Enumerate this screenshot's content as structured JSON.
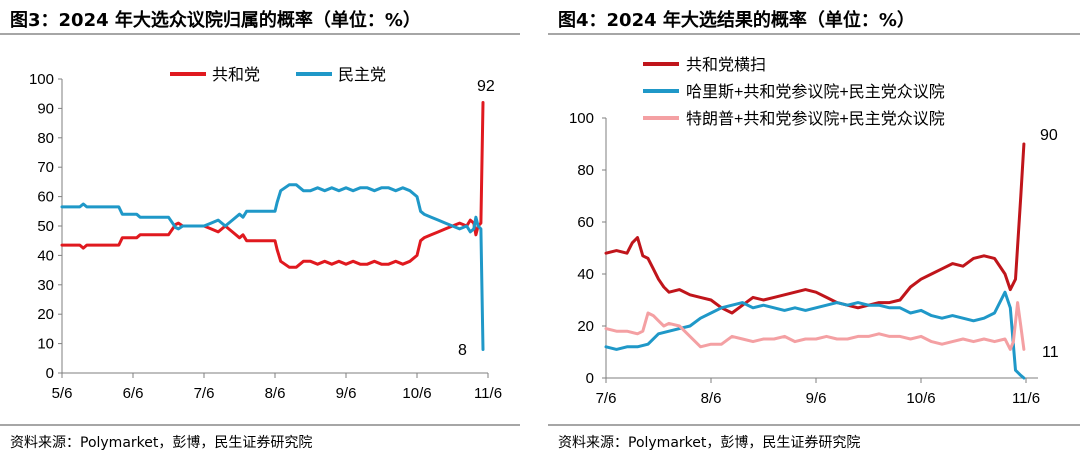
{
  "charts": [
    {
      "title": "图3：2024 年大选众议院归属的概率（单位：%）",
      "source": "资料来源：Polymarket，彭博，民生证券研究院"
    },
    {
      "title": "图4：2024 年大选结果的概率（单位：%）",
      "source": "资料来源：Polymarket，彭博，民生证券研究院"
    }
  ],
  "chart_data": [
    {
      "type": "line",
      "title": "图3：2024 年大选众议院归属的概率（单位：%）",
      "xlabel": "",
      "ylabel": "",
      "x_ticks": [
        "5/6",
        "6/6",
        "7/6",
        "8/6",
        "9/6",
        "10/6",
        "11/6"
      ],
      "y_ticks": [
        "0",
        "10",
        "20",
        "30",
        "40",
        "50",
        "60",
        "70",
        "80",
        "90",
        "100"
      ],
      "ylim": [
        0,
        100
      ],
      "grid": false,
      "legend_position": "top-center",
      "series": [
        {
          "name": "共和党",
          "color": "#e0191f",
          "x": [
            0.0,
            0.25,
            0.3,
            0.35,
            0.42,
            0.55,
            0.8,
            0.85,
            0.95,
            1.05,
            1.1,
            1.2,
            1.3,
            1.5,
            1.6,
            1.64,
            1.7,
            1.8,
            2.0,
            2.1,
            2.2,
            2.3,
            2.4,
            2.5,
            2.55,
            2.6,
            2.7,
            2.8,
            2.9,
            3.0,
            3.03,
            3.08,
            3.2,
            3.3,
            3.4,
            3.5,
            3.6,
            3.7,
            3.8,
            3.9,
            4.0,
            4.1,
            4.2,
            4.3,
            4.4,
            4.5,
            4.6,
            4.7,
            4.8,
            4.9,
            5.0,
            5.05,
            5.1,
            5.2,
            5.3,
            5.4,
            5.5,
            5.6,
            5.7,
            5.75,
            5.8,
            5.83,
            5.86,
            5.9,
            5.93
          ],
          "y": [
            43.5,
            43.5,
            42.5,
            43.5,
            43.5,
            43.5,
            43.5,
            46,
            46,
            46,
            47,
            47,
            47,
            47,
            50.5,
            51,
            50,
            50,
            50,
            49,
            48,
            50,
            48,
            46,
            47,
            45,
            45,
            45,
            45,
            45,
            42,
            38,
            36,
            36,
            38,
            38,
            37,
            38,
            37,
            38,
            37,
            38,
            37,
            37,
            38,
            37,
            37,
            38,
            37,
            38,
            40,
            45,
            46,
            47,
            48,
            49,
            50,
            51,
            50,
            52,
            51,
            47,
            50,
            51,
            92
          ]
        },
        {
          "name": "民主党",
          "color": "#1f98c8",
          "x": [
            0.0,
            0.25,
            0.3,
            0.35,
            0.42,
            0.55,
            0.8,
            0.85,
            0.95,
            1.05,
            1.1,
            1.2,
            1.3,
            1.5,
            1.6,
            1.64,
            1.7,
            1.8,
            2.0,
            2.1,
            2.2,
            2.3,
            2.4,
            2.5,
            2.55,
            2.6,
            2.7,
            2.8,
            2.9,
            3.0,
            3.03,
            3.08,
            3.2,
            3.3,
            3.4,
            3.5,
            3.6,
            3.7,
            3.8,
            3.9,
            4.0,
            4.1,
            4.2,
            4.3,
            4.4,
            4.5,
            4.6,
            4.7,
            4.8,
            4.9,
            5.0,
            5.05,
            5.1,
            5.2,
            5.3,
            5.4,
            5.5,
            5.6,
            5.7,
            5.75,
            5.8,
            5.83,
            5.86,
            5.9,
            5.93
          ],
          "y": [
            56.5,
            56.5,
            57.5,
            56.5,
            56.5,
            56.5,
            56.5,
            54,
            54,
            54,
            53,
            53,
            53,
            53,
            49.5,
            49,
            50,
            50,
            50,
            51,
            52,
            50,
            52,
            54,
            53,
            55,
            55,
            55,
            55,
            55,
            58,
            62,
            64,
            64,
            62,
            62,
            63,
            62,
            63,
            62,
            63,
            62,
            63,
            63,
            62,
            63,
            63,
            62,
            63,
            62,
            60,
            55,
            54,
            53,
            52,
            51,
            50,
            49,
            50,
            48,
            49,
            53,
            50,
            49,
            8
          ]
        }
      ],
      "data_labels": [
        "92",
        "8"
      ]
    },
    {
      "type": "line",
      "title": "图4：2024 年大选结果的概率（单位：%）",
      "xlabel": "",
      "ylabel": "",
      "x_ticks": [
        "7/6",
        "8/6",
        "9/6",
        "10/6",
        "11/6"
      ],
      "y_ticks": [
        "0",
        "20",
        "40",
        "60",
        "80",
        "100"
      ],
      "ylim": [
        0,
        100
      ],
      "grid": false,
      "legend_position": "top-left",
      "series": [
        {
          "name": "共和党横扫",
          "color": "#c0151b",
          "x": [
            0.0,
            0.1,
            0.2,
            0.25,
            0.3,
            0.35,
            0.4,
            0.45,
            0.5,
            0.55,
            0.6,
            0.7,
            0.8,
            0.9,
            1.0,
            1.1,
            1.2,
            1.3,
            1.4,
            1.5,
            1.6,
            1.7,
            1.8,
            1.9,
            2.0,
            2.1,
            2.2,
            2.3,
            2.4,
            2.5,
            2.6,
            2.7,
            2.8,
            2.9,
            3.0,
            3.1,
            3.2,
            3.3,
            3.4,
            3.5,
            3.6,
            3.7,
            3.8,
            3.85,
            3.9,
            3.95,
            3.98
          ],
          "y": [
            48,
            49,
            48,
            52,
            54,
            47,
            46,
            42,
            38,
            35,
            33,
            34,
            32,
            31,
            30,
            27,
            25,
            28,
            31,
            30,
            31,
            32,
            33,
            34,
            33,
            31,
            29,
            28,
            27,
            28,
            29,
            29,
            30,
            35,
            38,
            40,
            42,
            44,
            43,
            46,
            47,
            46,
            40,
            34,
            38,
            70,
            90
          ]
        },
        {
          "name": "哈里斯+共和党参议院+民主党众议院",
          "color": "#1f98c8",
          "x": [
            0.0,
            0.1,
            0.2,
            0.3,
            0.4,
            0.5,
            0.6,
            0.7,
            0.8,
            0.9,
            1.0,
            1.1,
            1.2,
            1.3,
            1.4,
            1.5,
            1.6,
            1.7,
            1.8,
            1.9,
            2.0,
            2.1,
            2.2,
            2.3,
            2.4,
            2.5,
            2.6,
            2.7,
            2.8,
            2.9,
            3.0,
            3.1,
            3.2,
            3.3,
            3.4,
            3.5,
            3.6,
            3.7,
            3.8,
            3.85,
            3.9,
            3.95,
            3.98
          ],
          "y": [
            12,
            11,
            12,
            12,
            13,
            17,
            18,
            19,
            20,
            23,
            25,
            27,
            28,
            29,
            27,
            28,
            27,
            26,
            27,
            26,
            27,
            28,
            29,
            28,
            29,
            28,
            28,
            27,
            27,
            25,
            26,
            24,
            23,
            24,
            23,
            22,
            23,
            25,
            33,
            27,
            3,
            1,
            0
          ]
        },
        {
          "name": "特朗普+共和党参议院+民主党众议院",
          "color": "#f4a0a3",
          "x": [
            0.0,
            0.1,
            0.2,
            0.3,
            0.35,
            0.4,
            0.45,
            0.5,
            0.55,
            0.6,
            0.7,
            0.8,
            0.9,
            1.0,
            1.1,
            1.2,
            1.3,
            1.4,
            1.5,
            1.6,
            1.7,
            1.8,
            1.9,
            2.0,
            2.1,
            2.2,
            2.3,
            2.4,
            2.5,
            2.6,
            2.7,
            2.8,
            2.9,
            3.0,
            3.1,
            3.2,
            3.3,
            3.4,
            3.5,
            3.6,
            3.7,
            3.8,
            3.85,
            3.88,
            3.92,
            3.95,
            3.98
          ],
          "y": [
            19,
            18,
            18,
            17,
            18,
            25,
            24,
            22,
            20,
            21,
            20,
            16,
            12,
            13,
            13,
            16,
            15,
            14,
            15,
            15,
            16,
            14,
            15,
            15,
            16,
            15,
            15,
            16,
            16,
            17,
            16,
            16,
            15,
            16,
            14,
            13,
            14,
            15,
            14,
            15,
            14,
            15,
            11,
            14,
            29,
            20,
            11
          ]
        }
      ],
      "data_labels": [
        "90",
        "11"
      ]
    }
  ]
}
